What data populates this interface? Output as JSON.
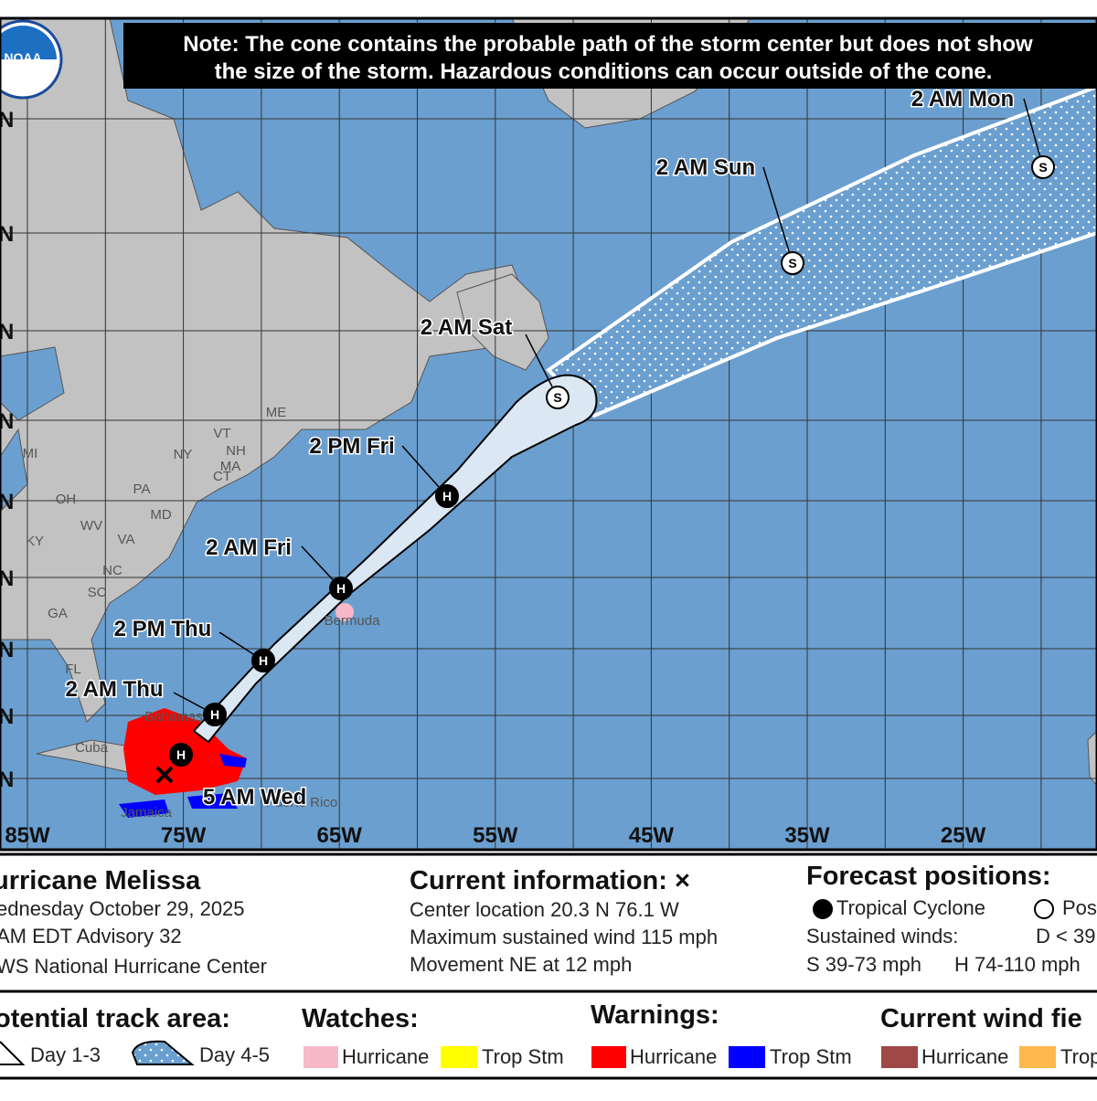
{
  "note": [
    "Note: The cone contains the probable path of the storm center but does not show",
    "the size of the storm. Hazardous conditions can occur outside of the cone."
  ],
  "logo": "NOAA",
  "longitude_labels": [
    "85W",
    "75W",
    "65W",
    "55W",
    "45W",
    "35W",
    "25W"
  ],
  "latitude_labels": [
    "N",
    "N",
    "N",
    "N",
    "N",
    "N",
    "N",
    "N",
    "N"
  ],
  "current_position": {
    "time": "5 AM Wed"
  },
  "forecast_points": [
    {
      "time": null,
      "symbol": "H"
    },
    {
      "time": "2 AM Thu",
      "symbol": "H"
    },
    {
      "time": "2 PM Thu",
      "symbol": "H"
    },
    {
      "time": "2 AM Fri",
      "symbol": "H"
    },
    {
      "time": "2 PM Fri",
      "symbol": "H"
    },
    {
      "time": "2 AM Sat",
      "symbol": "S"
    },
    {
      "time": "2 AM Sun",
      "symbol": "S"
    },
    {
      "time": "2 AM Mon",
      "symbol": "S"
    }
  ],
  "places": [
    "ME",
    "NY",
    "VT",
    "NH",
    "MA",
    "CT",
    "PA",
    "OH",
    "MI",
    "WV",
    "VA",
    "MD",
    "KY",
    "NC",
    "SC",
    "GA",
    "FL",
    "Bermuda",
    "Cuba",
    "Jamaica",
    "Bahamas",
    "Puerto Rico"
  ],
  "footer": {
    "storm": {
      "name": "urricane Melissa",
      "date": "ednesday October 29, 2025",
      "advisory": "AM EDT Advisory 32",
      "center": "WS National Hurricane Center"
    },
    "current_information": {
      "title": "Current information: ×",
      "location": "Center location 20.3 N 76.1 W",
      "wind": "Maximum sustained wind 115 mph",
      "movement": "Movement NE at 12 mph"
    },
    "forecast_positions": {
      "title": "Forecast positions:",
      "tropical": "Tropical Cyclone",
      "post": "Pos",
      "winds": "Sustained winds:",
      "d": "D < 39",
      "s": "S 39-73 mph",
      "h": "H 74-110 mph"
    },
    "track_area": {
      "title": "otential track area:",
      "day13": "Day 1-3",
      "day45": "Day 4-5"
    },
    "watches": {
      "title": "Watches:",
      "hurricane": "Hurricane",
      "trop": "Trop Stm"
    },
    "warnings": {
      "title": "Warnings:",
      "hurricane": "Hurricane",
      "trop": "Trop Stm"
    },
    "wind_field": {
      "title": "Current wind fie",
      "hurricane": "Hurricane",
      "trop": "Trop"
    }
  }
}
